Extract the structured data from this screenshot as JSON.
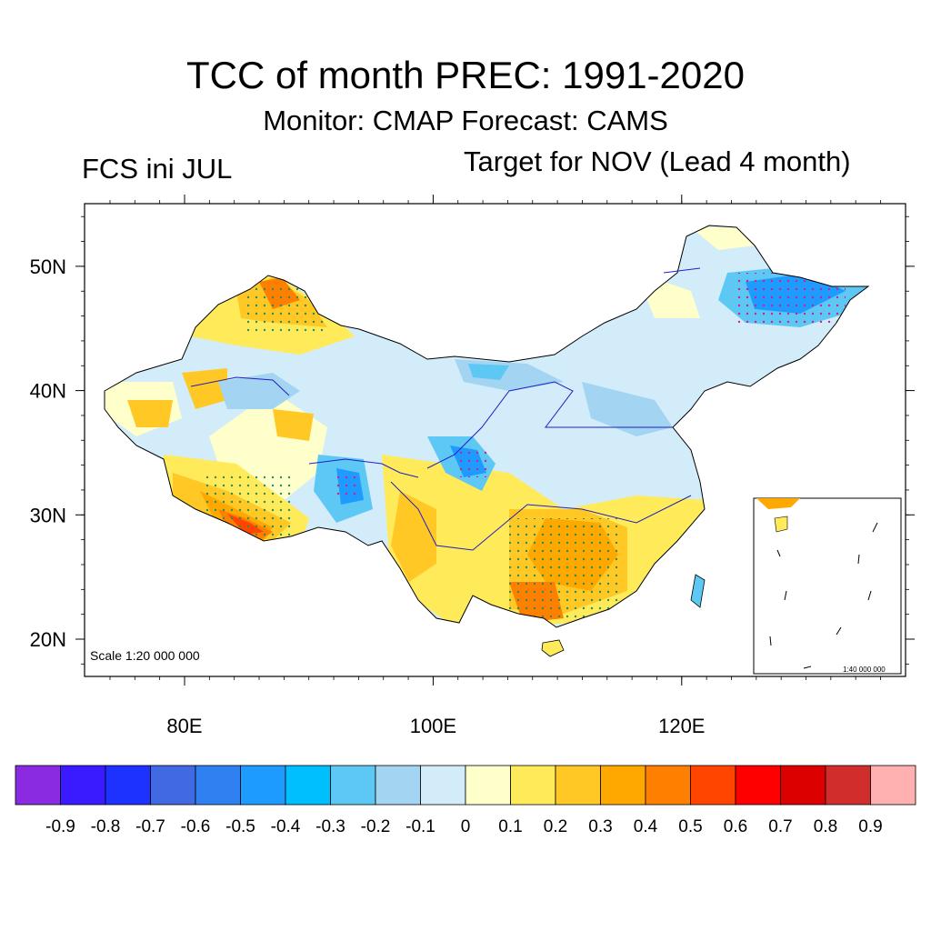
{
  "title": "TCC of month PREC: 1991-2020",
  "subtitle": "Monitor: CMAP   Forecast: CAMS",
  "left_label": "FCS ini JUL",
  "right_label": "Target for NOV (Lead 4 month)",
  "map": {
    "lon_ticks": [
      "80E",
      "100E",
      "120E"
    ],
    "lat_ticks": [
      "20N",
      "30N",
      "40N",
      "50N"
    ],
    "scale_main": "Scale 1:20 000 000",
    "scale_inset": "1:40 000 000",
    "lon_range": [
      72,
      138
    ],
    "lat_range": [
      17,
      55
    ]
  },
  "colorbar": {
    "colors": [
      "#8a2be2",
      "#3a1aff",
      "#1e32ff",
      "#4169e1",
      "#2f80f0",
      "#1e9bff",
      "#00bfff",
      "#5ec8f5",
      "#a3d4f2",
      "#d2ecfa",
      "#ffffcc",
      "#ffeb5a",
      "#ffc825",
      "#ffa800",
      "#ff8000",
      "#ff4500",
      "#ff0000",
      "#dc0000",
      "#d22d2d",
      "#ffb0b0"
    ],
    "labels": [
      "-0.9",
      "-0.8",
      "-0.7",
      "-0.6",
      "-0.5",
      "-0.4",
      "-0.3",
      "-0.2",
      "-0.1",
      "0",
      "0.1",
      "0.2",
      "0.3",
      "0.4",
      "0.5",
      "0.6",
      "0.7",
      "0.8",
      "0.9"
    ]
  }
}
